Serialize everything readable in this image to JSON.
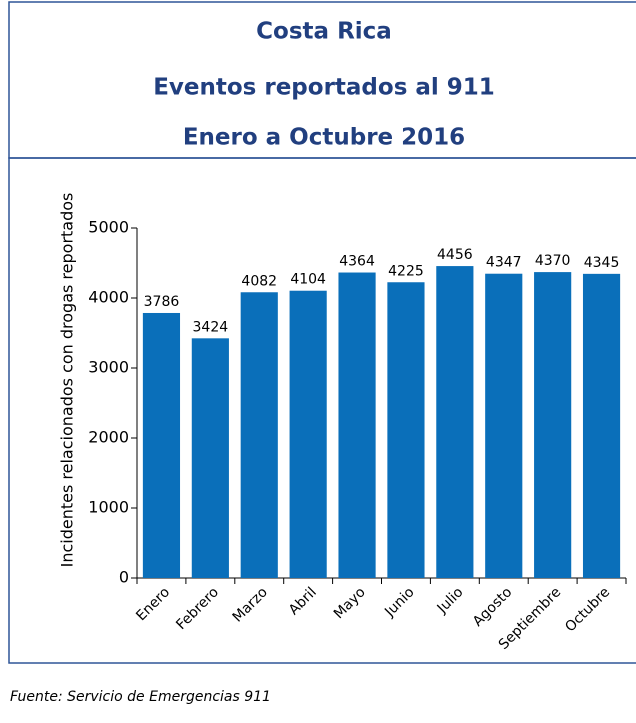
{
  "chart_data": {
    "type": "bar",
    "title": [
      "Costa Rica",
      "Eventos reportados al 911",
      "Enero a Octubre 2016"
    ],
    "y_label": "Incidentes relacionados con drogas reportados",
    "categories": [
      "Enero",
      "Febrero",
      "Marzo",
      "Abril",
      "Mayo",
      "Junio",
      "Julio",
      "Agosto",
      "Septiembre",
      "Octubre"
    ],
    "values": [
      3786,
      3424,
      4082,
      4104,
      4364,
      4225,
      4456,
      4347,
      4370,
      4345
    ],
    "color": "#0a6fba",
    "ylim": [
      0,
      5000
    ],
    "yticks": [
      0,
      1000,
      2000,
      3000,
      4000,
      5000
    ],
    "grid": false,
    "source": "Fuente: Servicio de Emergencias 911"
  }
}
